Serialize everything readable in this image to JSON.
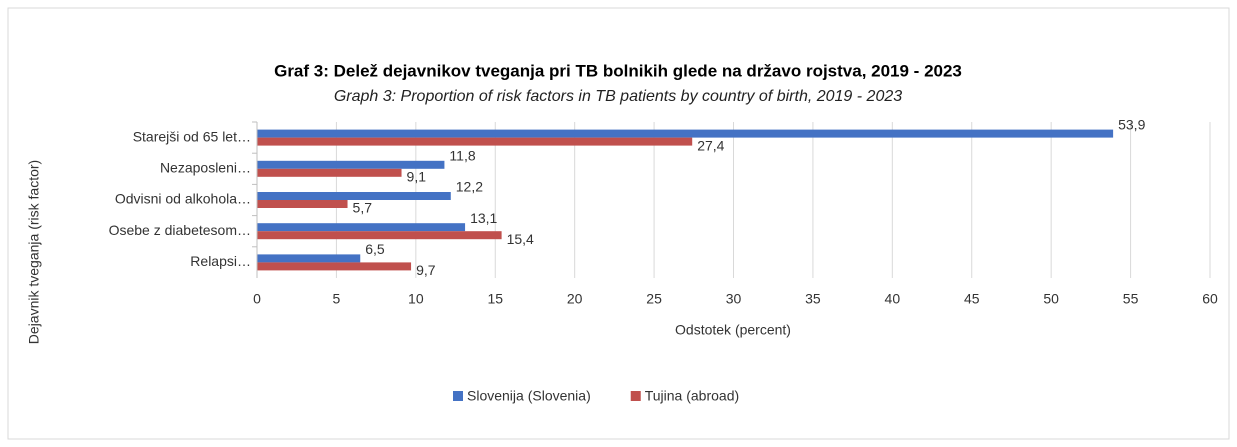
{
  "chart_data": {
    "type": "hbar",
    "title": "Graf 3: Delež dejavnikov tveganja pri TB bolnikih glede na državo rojstva, 2019 - 2023",
    "subtitle": "Graph 3: Proportion of risk factors in TB patients by country of birth, 2019 - 2023",
    "x_label": "Odstotek (percent)",
    "y_label": "Dejavnik tveganja (risk factor)",
    "categories": [
      "Starejši od 65 let…",
      "Nezaposleni…",
      "Odvisni od alkohola…",
      "Osebe z diabetesom…",
      "Relapsi…"
    ],
    "series": [
      {
        "name": "Slovenija (Slovenia)",
        "color": "#4472c4",
        "values": [
          53.9,
          11.8,
          12.2,
          13.1,
          6.5
        ],
        "value_labels": [
          "53,9",
          "11,8",
          "12,2",
          "13,1",
          "6,5"
        ]
      },
      {
        "name": "Tujina (abroad)",
        "color": "#c0504d",
        "values": [
          27.4,
          9.1,
          5.7,
          15.4,
          9.7
        ],
        "value_labels": [
          "27,4",
          "9,1",
          "5,7",
          "15,4",
          "9,7"
        ]
      }
    ],
    "xlim": [
      0,
      60
    ],
    "xticks": [
      0,
      5,
      10,
      15,
      20,
      25,
      30,
      35,
      40,
      45,
      50,
      55,
      60
    ],
    "grid": true,
    "legend": "bottom"
  }
}
